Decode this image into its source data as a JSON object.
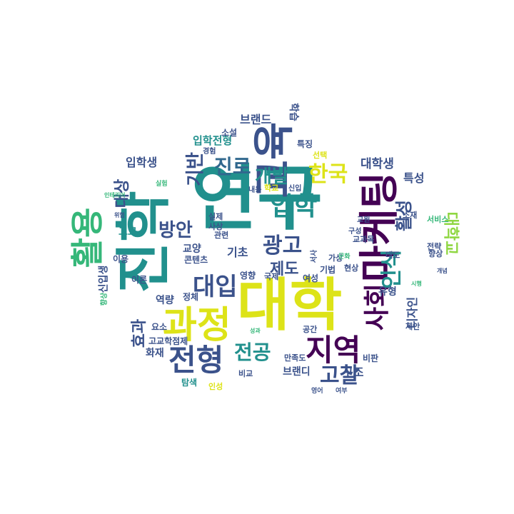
{
  "word_cloud": {
    "palette": {
      "purple": "#440154",
      "indigo": "#3b528b",
      "blue": "#31688e",
      "teal": "#21908d",
      "green": "#35b779",
      "lime": "#90d743",
      "yellow": "#dde318"
    },
    "words": [
      {
        "text": "연구",
        "color": "teal"
      },
      {
        "text": "대학",
        "color": "yellow"
      },
      {
        "text": "진학",
        "color": "teal"
      },
      {
        "text": "마케팅",
        "color": "purple"
      },
      {
        "text": "교육",
        "color": "indigo"
      },
      {
        "text": "과정",
        "color": "yellow"
      },
      {
        "text": "활용",
        "color": "green"
      },
      {
        "text": "전형",
        "color": "indigo"
      },
      {
        "text": "지역",
        "color": "purple"
      },
      {
        "text": "입학",
        "color": "teal"
      },
      {
        "text": "대입",
        "color": "indigo"
      },
      {
        "text": "사회",
        "color": "purple"
      },
      {
        "text": "한국",
        "color": "yellow"
      },
      {
        "text": "광고",
        "color": "indigo"
      },
      {
        "text": "전공",
        "color": "teal"
      },
      {
        "text": "진로",
        "color": "blue"
      },
      {
        "text": "개발",
        "color": "teal"
      },
      {
        "text": "인식",
        "color": "teal"
      },
      {
        "text": "방안",
        "color": "indigo"
      },
      {
        "text": "고찰",
        "color": "indigo"
      },
      {
        "text": "기반",
        "color": "indigo"
      },
      {
        "text": "제도",
        "color": "indigo"
      },
      {
        "text": "활성",
        "color": "indigo"
      },
      {
        "text": "대학교",
        "color": "lime"
      },
      {
        "text": "대상",
        "color": "indigo"
      },
      {
        "text": "효과",
        "color": "indigo"
      },
      {
        "text": "대학생",
        "color": "indigo"
      },
      {
        "text": "브랜드",
        "color": "indigo"
      },
      {
        "text": "입학전형",
        "color": "teal"
      },
      {
        "text": "입학생",
        "color": "indigo"
      },
      {
        "text": "특성",
        "color": "indigo"
      },
      {
        "text": "디자인",
        "color": "indigo"
      },
      {
        "text": "구조",
        "color": "indigo"
      },
      {
        "text": "기초",
        "color": "indigo"
      },
      {
        "text": "유형",
        "color": "indigo"
      },
      {
        "text": "교양",
        "color": "indigo"
      },
      {
        "text": "역량",
        "color": "indigo"
      },
      {
        "text": "화재",
        "color": "indigo"
      },
      {
        "text": "정체",
        "color": "indigo"
      },
      {
        "text": "고교",
        "color": "teal"
      },
      {
        "text": "신입생",
        "color": "indigo"
      },
      {
        "text": "이용",
        "color": "indigo"
      },
      {
        "text": "이론",
        "color": "indigo"
      },
      {
        "text": "탐색",
        "color": "teal"
      },
      {
        "text": "요소",
        "color": "indigo"
      },
      {
        "text": "고교학점제",
        "color": "indigo"
      },
      {
        "text": "콘텐츠",
        "color": "indigo"
      },
      {
        "text": "관련",
        "color": "indigo"
      },
      {
        "text": "실제",
        "color": "indigo"
      },
      {
        "text": "사상",
        "color": "indigo"
      },
      {
        "text": "소설",
        "color": "indigo"
      },
      {
        "text": "특징",
        "color": "indigo"
      },
      {
        "text": "경험",
        "color": "indigo"
      },
      {
        "text": "선택",
        "color": "yellow"
      },
      {
        "text": "학교",
        "color": "yellow"
      },
      {
        "text": "내용",
        "color": "indigo"
      },
      {
        "text": "신입",
        "color": "indigo"
      },
      {
        "text": "영향",
        "color": "indigo"
      },
      {
        "text": "국제",
        "color": "indigo"
      },
      {
        "text": "여성",
        "color": "indigo"
      },
      {
        "text": "기법",
        "color": "indigo"
      },
      {
        "text": "현상",
        "color": "indigo"
      },
      {
        "text": "가상",
        "color": "indigo"
      },
      {
        "text": "공간",
        "color": "indigo"
      },
      {
        "text": "만족도",
        "color": "indigo"
      },
      {
        "text": "비교",
        "color": "indigo"
      },
      {
        "text": "브랜디",
        "color": "indigo"
      },
      {
        "text": "인성",
        "color": "yellow"
      },
      {
        "text": "비판",
        "color": "indigo"
      },
      {
        "text": "제안",
        "color": "indigo"
      },
      {
        "text": "태도",
        "color": "indigo"
      },
      {
        "text": "향상",
        "color": "indigo"
      },
      {
        "text": "서비스",
        "color": "green"
      },
      {
        "text": "소재",
        "color": "indigo"
      },
      {
        "text": "전략",
        "color": "indigo"
      },
      {
        "text": "교과목",
        "color": "indigo"
      },
      {
        "text": "구성",
        "color": "indigo"
      },
      {
        "text": "향상",
        "color": "green"
      },
      {
        "text": "교원",
        "color": "indigo"
      },
      {
        "text": "학습",
        "color": "indigo"
      },
      {
        "text": "실험",
        "color": "green"
      },
      {
        "text": "인테리어",
        "color": "green"
      },
      {
        "text": "문화",
        "color": "green"
      },
      {
        "text": "서사",
        "color": "indigo"
      },
      {
        "text": "위험",
        "color": "indigo"
      },
      {
        "text": "시행",
        "color": "green"
      },
      {
        "text": "영어",
        "color": "indigo"
      },
      {
        "text": "여부",
        "color": "indigo"
      },
      {
        "text": "성과",
        "color": "green"
      },
      {
        "text": "개념",
        "color": "indigo"
      }
    ]
  }
}
